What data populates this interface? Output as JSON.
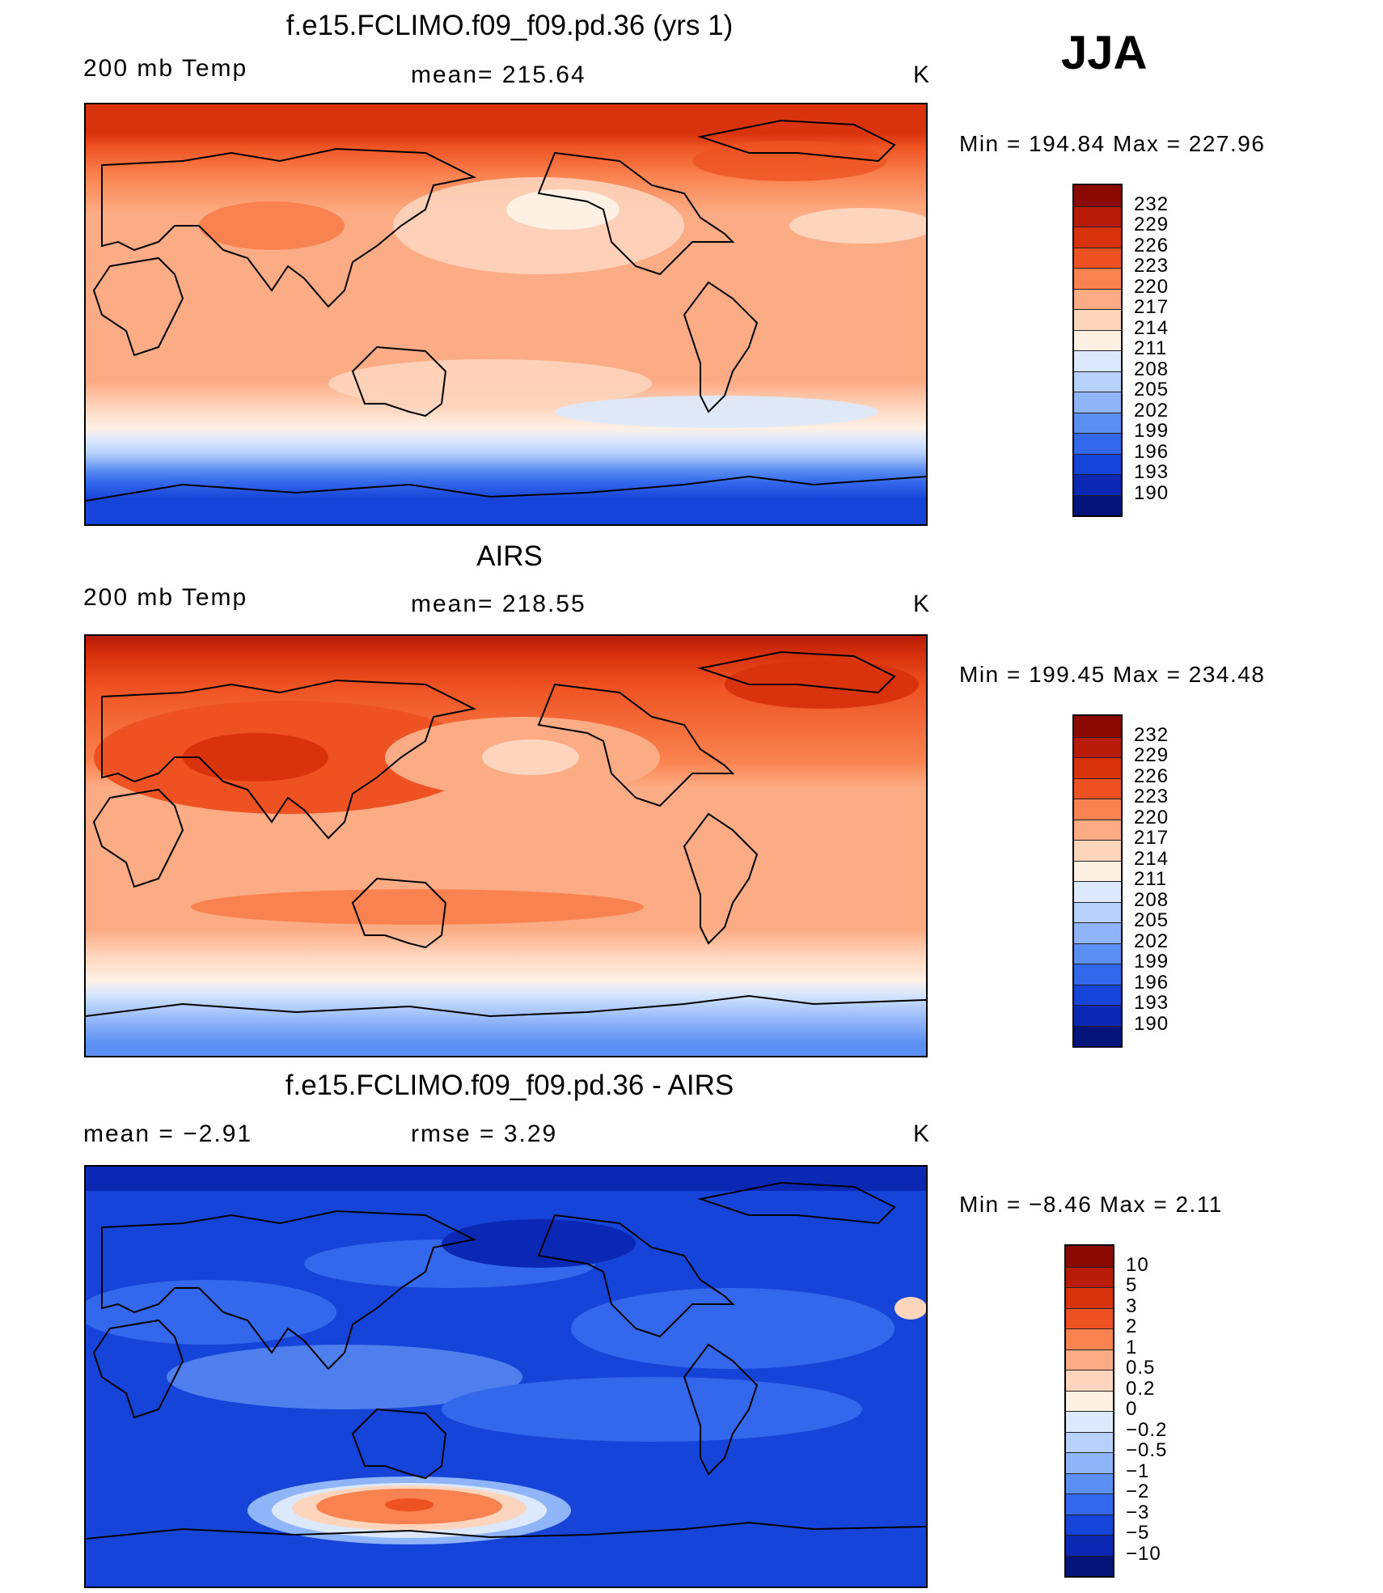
{
  "season": "JJA",
  "units": "K",
  "panels": [
    {
      "title": "f.e15.FCLIMO.f09_f09.pd.36 (yrs 1)",
      "left_label": "200 mb Temp",
      "center_label": "mean=  215.64",
      "right_label": "K",
      "min_max": "Min  =  194.84  Max  =  227.96"
    },
    {
      "title": "AIRS",
      "left_label": "200 mb Temp",
      "center_label": "mean=  218.55",
      "right_label": "K",
      "min_max": "Min  =  199.45  Max  =  234.48"
    },
    {
      "title": "f.e15.FCLIMO.f09_f09.pd.36 - AIRS",
      "left_label": "mean  =    −2.91",
      "center_label": "rmse  =     3.29",
      "right_label": "K",
      "min_max": "Min  =    −8.46  Max  =      2.11"
    }
  ],
  "colorbars": {
    "temperature": {
      "levels": [
        "232",
        "229",
        "226",
        "223",
        "220",
        "217",
        "214",
        "211",
        "208",
        "205",
        "202",
        "199",
        "196",
        "193",
        "190"
      ],
      "colors": [
        "#8b0a04",
        "#b81c08",
        "#d8330d",
        "#ee5222",
        "#f98350",
        "#fcac84",
        "#fdd4bc",
        "#fff0e4",
        "#dce9fc",
        "#b7d1fb",
        "#8fb4f8",
        "#5c8ff2",
        "#3468ec",
        "#1744d8",
        "#0a28b4",
        "#04147a"
      ]
    },
    "difference": {
      "levels": [
        "10",
        "5",
        "3",
        "2",
        "1",
        "0.5",
        "0.2",
        "0",
        "−0.2",
        "−0.5",
        "−1",
        "−2",
        "−3",
        "−5",
        "−10"
      ],
      "colors": [
        "#8b0a04",
        "#b81c08",
        "#d8330d",
        "#ee5222",
        "#f98350",
        "#fcac84",
        "#fdd4bc",
        "#fff0e4",
        "#dce9fc",
        "#b7d1fb",
        "#8fb4f8",
        "#5c8ff2",
        "#3468ec",
        "#1744d8",
        "#0a28b4",
        "#04147a"
      ]
    }
  }
}
